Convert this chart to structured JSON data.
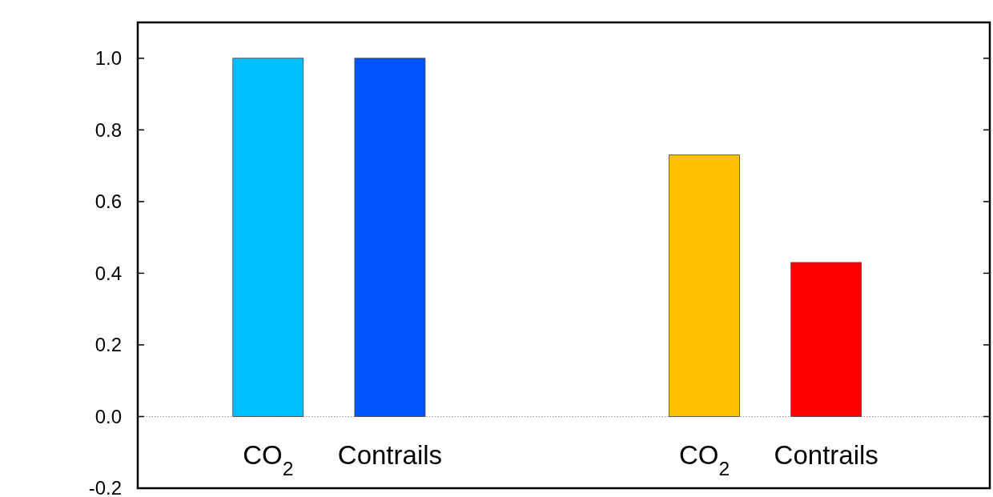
{
  "chart_data": {
    "type": "bar",
    "categories": [
      "CO$_{2}$",
      "Contrails",
      "CO$_{2}$",
      "Contrails"
    ],
    "series": [
      {
        "values": [
          1.0,
          1.0,
          0.73,
          0.43
        ],
        "colors": [
          "#00bfff",
          "#0055ff",
          "#ffc000",
          "#ff0000"
        ]
      }
    ],
    "ylim": [
      -0.2,
      1.1
    ],
    "yticks": [
      {
        "value": -0.2,
        "label": "-0.2"
      },
      {
        "value": 0,
        "label": "0.0"
      },
      {
        "value": 0.2,
        "label": "0.2"
      },
      {
        "value": 0.4,
        "label": "0.4"
      },
      {
        "value": 0.6,
        "label": "0.6"
      },
      {
        "value": 0.8,
        "label": "0.8"
      },
      {
        "value": 1,
        "label": "1.0"
      }
    ],
    "ref_lines": [
      {
        "axis": "y",
        "value": 0,
        "line_style": "dotted",
        "color": "#999999"
      }
    ],
    "grid": false
  }
}
